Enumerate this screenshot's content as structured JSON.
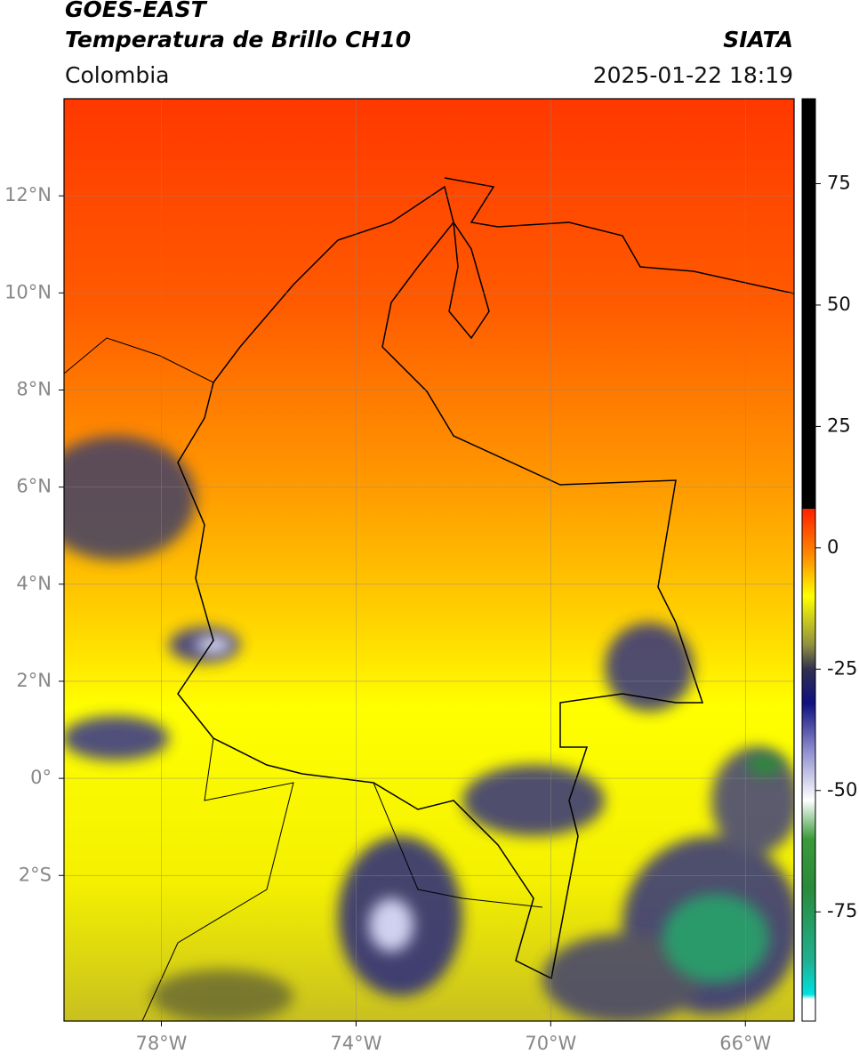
{
  "header": {
    "platform": "GOES-EAST",
    "product": "Temperatura de Brillo CH10",
    "region": "Colombia",
    "source": "SIATA",
    "datetime": "2025-01-22 18:19"
  },
  "map": {
    "xlim": [
      -80,
      -65
    ],
    "ylim": [
      -5,
      14
    ],
    "xticks": [
      {
        "value": -78,
        "label": "78°W"
      },
      {
        "value": -74,
        "label": "74°W"
      },
      {
        "value": -70,
        "label": "70°W"
      },
      {
        "value": -66,
        "label": "66°W"
      }
    ],
    "yticks": [
      {
        "value": 12,
        "label": "12°N"
      },
      {
        "value": 10,
        "label": "10°N"
      },
      {
        "value": 8,
        "label": "8°N"
      },
      {
        "value": 6,
        "label": "6°N"
      },
      {
        "value": 4,
        "label": "4°N"
      },
      {
        "value": 2,
        "label": "2°N"
      },
      {
        "value": 0,
        "label": "0°"
      },
      {
        "value": -2,
        "label": "2°S"
      }
    ],
    "grid": true
  },
  "colorbar": {
    "lim": [
      -97.5,
      92.5
    ],
    "ticks": [
      75,
      50,
      25,
      0,
      -25,
      -50,
      -75
    ],
    "stops": [
      {
        "value": -97.5,
        "color": "#ffffff"
      },
      {
        "value": -93,
        "color": "#ffffff"
      },
      {
        "value": -92,
        "color": "#00e0e0"
      },
      {
        "value": -85,
        "color": "#20b090"
      },
      {
        "value": -70,
        "color": "#2a8a3a"
      },
      {
        "value": -60,
        "color": "#3a9a3a"
      },
      {
        "value": -52,
        "color": "#ffffff"
      },
      {
        "value": -42,
        "color": "#9090d0"
      },
      {
        "value": -32,
        "color": "#101080"
      },
      {
        "value": -25,
        "color": "#303050"
      },
      {
        "value": -20,
        "color": "#909040"
      },
      {
        "value": -10,
        "color": "#ffff00"
      },
      {
        "value": -2,
        "color": "#ff9000"
      },
      {
        "value": 8,
        "color": "#ff2000"
      },
      {
        "value": 8.01,
        "color": "#000000"
      },
      {
        "value": 92.5,
        "color": "#000000"
      }
    ]
  }
}
